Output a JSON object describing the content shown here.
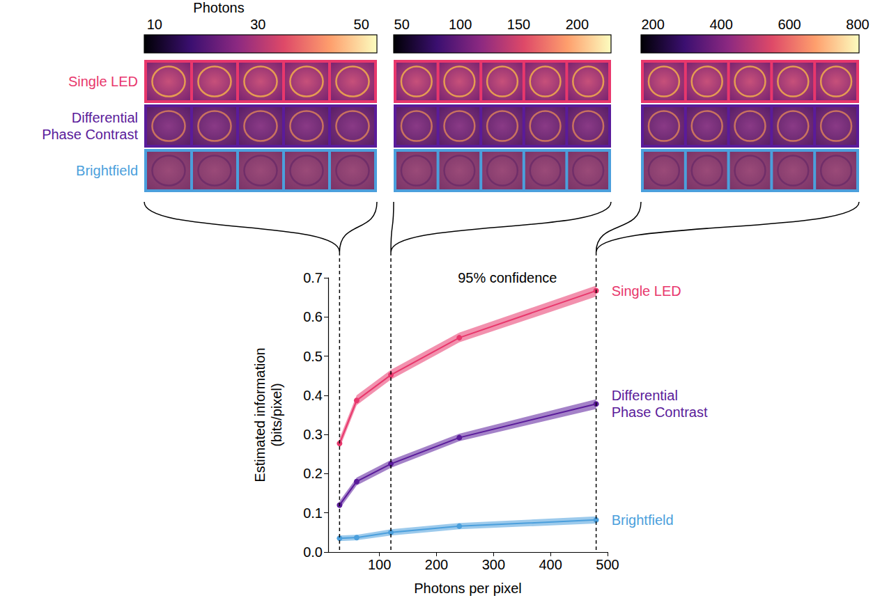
{
  "image_panels": {
    "colorbar_title": "Photons",
    "colorbars": [
      {
        "range": [
          8,
          53
        ],
        "ticks": [
          10,
          30,
          50
        ]
      },
      {
        "range": [
          43,
          229
        ],
        "ticks": [
          50,
          100,
          150,
          200
        ]
      },
      {
        "range": [
          165,
          804
        ],
        "ticks": [
          200,
          400,
          600,
          800
        ]
      }
    ],
    "images_per_row": 5,
    "rows": [
      {
        "label": "Single LED",
        "color": "#e8376c"
      },
      {
        "label": "Differential Phase Contrast",
        "color": "#5a1b9a"
      },
      {
        "label": "Brightfield",
        "color": "#4b9fdc"
      }
    ]
  },
  "chart_data": {
    "type": "line",
    "xlabel": "Photons per pixel",
    "ylabel": "Estimated information (bits/pixel)",
    "x": [
      30,
      60,
      120,
      240,
      480
    ],
    "series": [
      {
        "name": "Single LED",
        "color": "#e8376c",
        "marker": "circle",
        "values": [
          0.277,
          0.387,
          0.452,
          0.547,
          0.667
        ],
        "lower": [
          0.265,
          0.375,
          0.44,
          0.535,
          0.652
        ],
        "upper": [
          0.29,
          0.4,
          0.465,
          0.56,
          0.68
        ]
      },
      {
        "name": "Differential Phase Contrast",
        "color": "#5a1b9a",
        "marker": "circle",
        "values": [
          0.12,
          0.18,
          0.225,
          0.292,
          0.378
        ],
        "lower": [
          0.11,
          0.17,
          0.215,
          0.283,
          0.365
        ],
        "upper": [
          0.13,
          0.19,
          0.235,
          0.302,
          0.39
        ]
      },
      {
        "name": "Brightfield",
        "color": "#4b9fdc",
        "marker": "circle",
        "values": [
          0.035,
          0.037,
          0.05,
          0.066,
          0.082
        ],
        "lower": [
          0.028,
          0.03,
          0.042,
          0.058,
          0.073
        ],
        "upper": [
          0.042,
          0.044,
          0.058,
          0.074,
          0.091
        ]
      }
    ],
    "band_label": "95% confidence",
    "dashed_lines_x": [
      30,
      120,
      480
    ],
    "xlim": [
      10,
      500
    ],
    "xticks": [
      100,
      200,
      300,
      400,
      500
    ],
    "ylim": [
      0,
      0.7
    ],
    "yticks": [
      {
        "value": 0,
        "label": "0.0"
      },
      0.1,
      0.2,
      0.3,
      0.4,
      0.5,
      0.6,
      0.7
    ],
    "grid": false
  }
}
